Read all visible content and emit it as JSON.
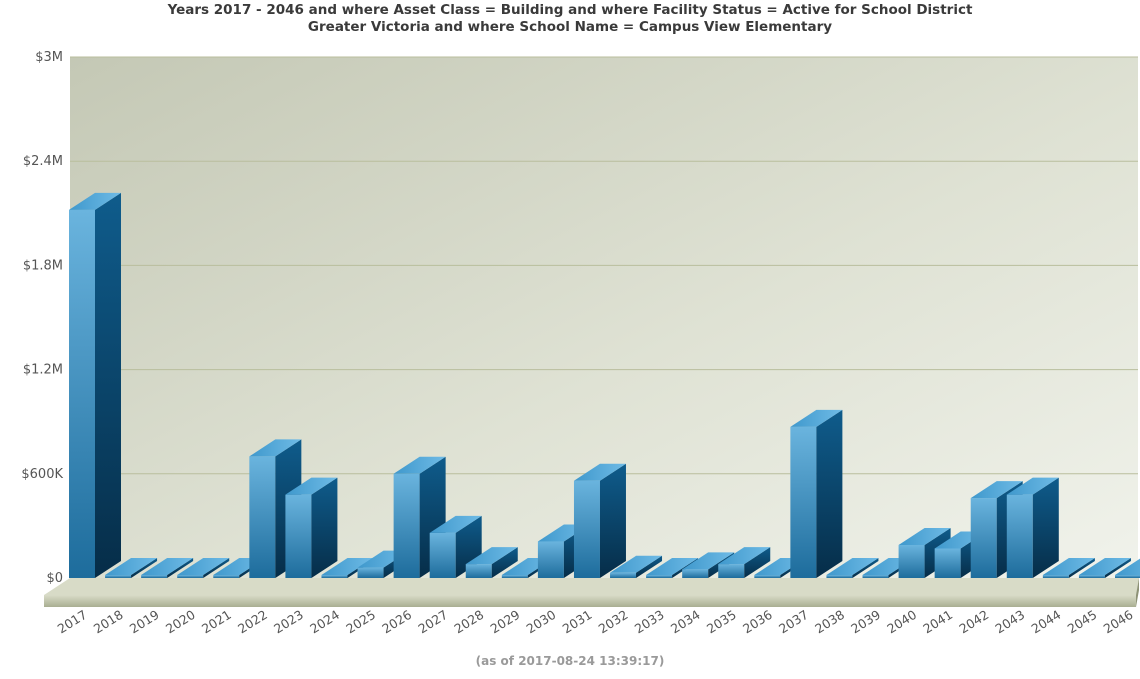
{
  "chart_data": {
    "type": "bar",
    "title_line1": "Years 2017 - 2046  and where Asset Class =  Building and where Facility Status =  Active for School District",
    "title_line2": "Greater Victoria and  where School Name =  Campus View Elementary",
    "footnote": "(as of 2017-08-24 13:39:17)",
    "xlabel": "",
    "ylabel": "",
    "ylim": [
      0,
      3000000
    ],
    "yticks": [
      0,
      600000,
      1200000,
      1800000,
      2400000,
      3000000
    ],
    "ytick_labels": [
      "$0",
      "$600K",
      "$1.2M",
      "$1.8M",
      "$2.4M",
      "$3M"
    ],
    "grid": true,
    "categories": [
      "2017",
      "2018",
      "2019",
      "2020",
      "2021",
      "2022",
      "2023",
      "2024",
      "2025",
      "2026",
      "2027",
      "2028",
      "2029",
      "2030",
      "2031",
      "2032",
      "2033",
      "2034",
      "2035",
      "2036",
      "2037",
      "2038",
      "2039",
      "2040",
      "2041",
      "2042",
      "2043",
      "2044",
      "2045",
      "2046"
    ],
    "values": [
      2120000,
      0,
      0,
      0,
      0,
      700000,
      480000,
      0,
      60000,
      600000,
      260000,
      80000,
      0,
      210000,
      560000,
      30000,
      0,
      50000,
      80000,
      0,
      870000,
      0,
      0,
      190000,
      170000,
      460000,
      480000,
      0,
      0,
      0
    ],
    "colors": {
      "bar_front_light": "#6ab4de",
      "bar_front_dark": "#1d6c9c",
      "bar_side": "#0b4a72",
      "bar_top": "#5fb0e0",
      "floor": "#c2c7ad",
      "grid": "#b9be9d",
      "axis_text": "#555555"
    }
  }
}
